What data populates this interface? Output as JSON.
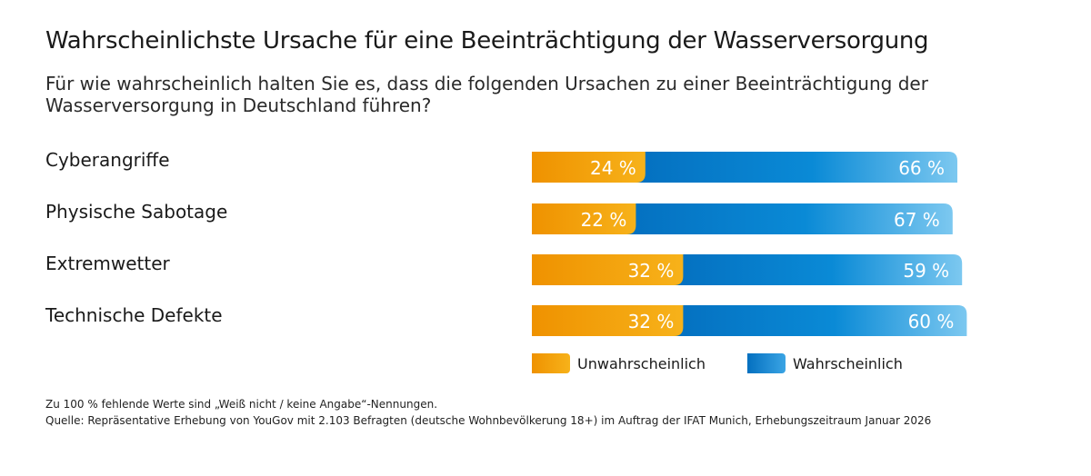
{
  "title": "Wahrscheinlichste Ursache für eine Beeinträchtigung der Wasserversorgung",
  "subtitle": "Für wie wahrscheinlich halten Sie es, dass die folgenden Ursachen zu einer Beeinträchtigung der Wasserversorgung in Deutschland führen?",
  "chart_data": {
    "type": "bar",
    "orientation": "horizontal",
    "stacked": true,
    "categories": [
      "Cyberangriffe",
      "Physische Sabotage",
      "Extremwetter",
      "Technische Defekte"
    ],
    "series": [
      {
        "name": "Unwahrscheinlich",
        "values": [
          24,
          22,
          32,
          32
        ],
        "labels": [
          "24 %",
          "22 %",
          "32 %",
          "32 %"
        ],
        "color": "#f29a00"
      },
      {
        "name": "Wahrscheinlich",
        "values": [
          66,
          67,
          59,
          60
        ],
        "labels": [
          "66 %",
          "67 %",
          "59 %",
          "60 %"
        ],
        "color": "#0a84d0"
      }
    ],
    "legend": "bottom",
    "grid": false
  },
  "footnote": "Zu 100 % fehlende Werte sind „Weiß nicht / keine Angabe“-Nennungen.",
  "source": "Quelle: Repräsentative Erhebung von YouGov mit 2.103 Befragten (deutsche Wohnbevölkerung 18+) im Auftrag der IFAT Munich, Erhebungszeitraum Januar 2026"
}
